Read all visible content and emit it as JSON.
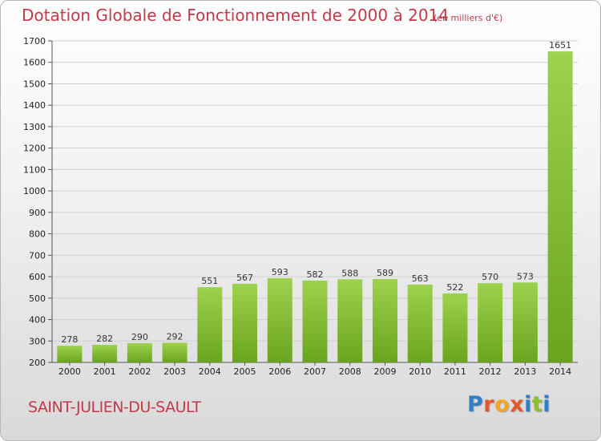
{
  "title": "Dotation Globale de Fonctionnement de 2000 à 2014",
  "subtitle": "(en milliers d'€)",
  "commune": "SAINT-JULIEN-DU-SAULT",
  "logo": {
    "text": "Proxiti",
    "letter_colors": [
      "#2e7fc7",
      "#e0592a",
      "#f2a623",
      "#e0592a",
      "#2e7fc7",
      "#8dbf2f",
      "#2e7fc7"
    ]
  },
  "colors": {
    "title": "#c13a4a",
    "bar_light": "#9dd24e",
    "bar_dark": "#6aa41e"
  },
  "chart_data": {
    "type": "bar",
    "title": "Dotation Globale de Fonctionnement de 2000 à 2014",
    "subtitle": "(en milliers d'€)",
    "categories": [
      "2000",
      "2001",
      "2002",
      "2003",
      "2004",
      "2005",
      "2006",
      "2007",
      "2008",
      "2009",
      "2010",
      "2011",
      "2012",
      "2013",
      "2014"
    ],
    "values": [
      278,
      282,
      290,
      292,
      551,
      567,
      593,
      582,
      588,
      589,
      563,
      522,
      570,
      573,
      1651
    ],
    "ylim": [
      200,
      1700
    ],
    "yticks": [
      200,
      300,
      400,
      500,
      600,
      700,
      800,
      900,
      1000,
      1100,
      1200,
      1300,
      1400,
      1500,
      1600,
      1700
    ],
    "xlabel": "",
    "ylabel": "",
    "grid": true,
    "data_labels": true
  }
}
